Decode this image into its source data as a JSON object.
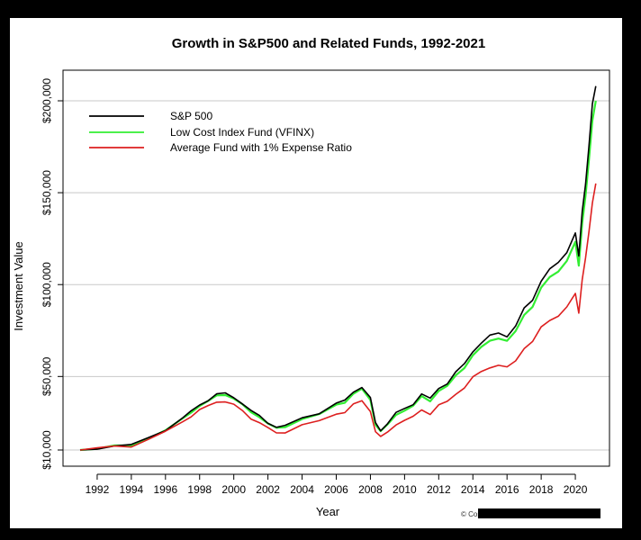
{
  "chart_data": {
    "type": "line",
    "title": "Growth in S&P500 and Related Funds, 1992-2021",
    "xlabel": "Year",
    "ylabel": "Investment Value",
    "xlim": [
      1990,
      2022
    ],
    "ylim": [
      6000,
      220000
    ],
    "x_ticks": [
      1992,
      1994,
      1996,
      1998,
      2000,
      2002,
      2004,
      2006,
      2008,
      2010,
      2012,
      2014,
      2016,
      2018,
      2020
    ],
    "x_tick_labels": [
      "1992",
      "1994",
      "1996",
      "1998",
      "2000",
      "2002",
      "2004",
      "2006",
      "2008",
      "2010",
      "2012",
      "2014",
      "2016",
      "2018",
      "2020"
    ],
    "y_ticks": [
      10000,
      50000,
      100000,
      150000,
      200000
    ],
    "y_tick_labels": [
      "$10,000",
      "$50,000",
      "$100,000",
      "$150,000",
      "$200,000"
    ],
    "grid": "horizontal",
    "legend_position": "top-left",
    "x": [
      1991.0,
      1992.0,
      1993.0,
      1994.0,
      1995.0,
      1996.0,
      1997.0,
      1997.5,
      1998.0,
      1998.5,
      1999.0,
      1999.5,
      2000.0,
      2000.5,
      2001.0,
      2001.5,
      2002.0,
      2002.5,
      2003.0,
      2004.0,
      2005.0,
      2006.0,
      2006.5,
      2007.0,
      2007.5,
      2008.0,
      2008.3,
      2008.6,
      2009.0,
      2009.5,
      2010.0,
      2010.5,
      2011.0,
      2011.5,
      2012.0,
      2012.5,
      2013.0,
      2013.5,
      2014.0,
      2014.5,
      2015.0,
      2015.5,
      2016.0,
      2016.5,
      2017.0,
      2017.5,
      2018.0,
      2018.5,
      2019.0,
      2019.5,
      2020.0,
      2020.2,
      2020.4,
      2020.6,
      2020.8,
      2021.0,
      2021.2
    ],
    "series": [
      {
        "name": "S&P 500",
        "color": "#000000",
        "values": [
          10000,
          11000,
          12000,
          12500,
          17000,
          21000,
          27000,
          31000,
          35000,
          37000,
          40000,
          41000,
          39000,
          35000,
          31000,
          29000,
          25000,
          22000,
          23000,
          28000,
          30000,
          35000,
          37000,
          42000,
          44000,
          38000,
          25000,
          21000,
          24000,
          30000,
          33000,
          35000,
          40000,
          38000,
          44000,
          46000,
          52000,
          57000,
          64000,
          68000,
          72000,
          74000,
          72000,
          77000,
          87000,
          92000,
          102000,
          108000,
          112000,
          118000,
          128000,
          115000,
          140000,
          155000,
          175000,
          198000,
          208000
        ]
      },
      {
        "name": "Low Cost Index Fund (VFINX)",
        "color": "#33ee33",
        "values": [
          10000,
          10950,
          11900,
          12400,
          16800,
          20700,
          26600,
          30500,
          34500,
          36400,
          39300,
          40300,
          38300,
          34400,
          30400,
          28400,
          24500,
          21500,
          22500,
          27400,
          29300,
          34200,
          36100,
          41000,
          42900,
          37000,
          24300,
          20400,
          23300,
          29100,
          32000,
          33900,
          38800,
          36800,
          42600,
          44500,
          50300,
          55100,
          61800,
          65600,
          69400,
          71200,
          69300,
          74100,
          83700,
          88400,
          98000,
          103700,
          107500,
          113200,
          122700,
          110200,
          134100,
          148400,
          167500,
          189400,
          200000
        ]
      },
      {
        "name": "Average Fund with 1% Expense Ratio",
        "color": "#dd1f1f",
        "values": [
          10000,
          10850,
          11700,
          12050,
          16100,
          19700,
          25100,
          28600,
          32100,
          33600,
          36100,
          36700,
          34700,
          31000,
          27200,
          25300,
          21700,
          19000,
          19800,
          23900,
          25400,
          29500,
          30900,
          34900,
          36300,
          31200,
          20400,
          17000,
          19400,
          24100,
          26400,
          27800,
          31700,
          29900,
          34500,
          35900,
          40500,
          44200,
          49500,
          52300,
          55100,
          56400,
          54700,
          58300,
          65700,
          69100,
          76400,
          80600,
          83300,
          87600,
          94700,
          84900,
          103100,
          114000,
          128500,
          145000,
          155000
        ]
      }
    ]
  },
  "copyright_text": "© Copyright"
}
